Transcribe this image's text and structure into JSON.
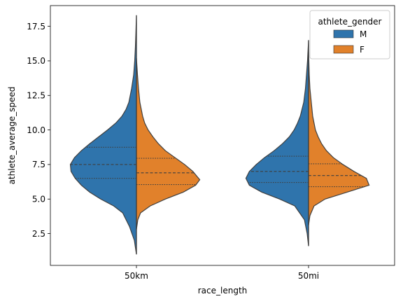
{
  "chart_data": {
    "type": "violin",
    "split": true,
    "xlabel": "race_length",
    "ylabel": "athlete_average_speed",
    "ylim": [
      0.2,
      19.0
    ],
    "yticks": [
      2.5,
      5.0,
      7.5,
      10.0,
      12.5,
      15.0,
      17.5
    ],
    "ytick_labels": [
      "2.5",
      "5.0",
      "7.5",
      "10.0",
      "12.5",
      "15.0",
      "17.5"
    ],
    "categories": [
      "50km",
      "50mi"
    ],
    "legend": {
      "title": "athlete_gender",
      "placement": "top-right",
      "entries": [
        "M",
        "F"
      ]
    },
    "series": [
      {
        "name": "M",
        "color": "#2f74ac",
        "violins": [
          {
            "category": "50km",
            "min": 1.0,
            "max": 18.3,
            "quartiles": [
              6.5,
              7.5,
              8.75
            ],
            "density": [
              [
                1.0,
                0.0
              ],
              [
                2.0,
                0.03
              ],
              [
                3.0,
                0.1
              ],
              [
                4.0,
                0.2
              ],
              [
                4.5,
                0.33
              ],
              [
                5.0,
                0.52
              ],
              [
                5.5,
                0.68
              ],
              [
                6.0,
                0.8
              ],
              [
                6.5,
                0.89
              ],
              [
                7.0,
                0.95
              ],
              [
                7.5,
                0.96
              ],
              [
                8.0,
                0.9
              ],
              [
                8.5,
                0.8
              ],
              [
                9.0,
                0.68
              ],
              [
                9.5,
                0.55
              ],
              [
                10.0,
                0.42
              ],
              [
                10.5,
                0.3
              ],
              [
                11.0,
                0.21
              ],
              [
                11.5,
                0.15
              ],
              [
                12.0,
                0.11
              ],
              [
                13.0,
                0.07
              ],
              [
                14.0,
                0.04
              ],
              [
                15.0,
                0.025
              ],
              [
                16.0,
                0.015
              ],
              [
                17.0,
                0.008
              ],
              [
                18.3,
                0.0
              ]
            ]
          },
          {
            "category": "50mi",
            "min": 1.6,
            "max": 16.5,
            "quartiles": [
              6.2,
              7.0,
              8.1
            ],
            "density": [
              [
                1.6,
                0.0
              ],
              [
                2.5,
                0.02
              ],
              [
                3.5,
                0.06
              ],
              [
                4.5,
                0.2
              ],
              [
                5.0,
                0.42
              ],
              [
                5.5,
                0.68
              ],
              [
                6.0,
                0.86
              ],
              [
                6.5,
                0.91
              ],
              [
                7.0,
                0.86
              ],
              [
                7.5,
                0.76
              ],
              [
                8.0,
                0.64
              ],
              [
                8.5,
                0.5
              ],
              [
                9.0,
                0.38
              ],
              [
                9.5,
                0.28
              ],
              [
                10.0,
                0.21
              ],
              [
                10.5,
                0.16
              ],
              [
                11.0,
                0.12
              ],
              [
                12.0,
                0.07
              ],
              [
                13.0,
                0.045
              ],
              [
                14.0,
                0.03
              ],
              [
                15.0,
                0.015
              ],
              [
                16.5,
                0.0
              ]
            ]
          }
        ]
      },
      {
        "name": "F",
        "color": "#e1812b",
        "violins": [
          {
            "category": "50km",
            "min": 2.8,
            "max": 15.2,
            "quartiles": [
              6.05,
              6.9,
              7.95
            ],
            "density": [
              [
                2.8,
                0.0
              ],
              [
                3.5,
                0.02
              ],
              [
                4.0,
                0.06
              ],
              [
                4.5,
                0.2
              ],
              [
                5.0,
                0.42
              ],
              [
                5.5,
                0.68
              ],
              [
                6.0,
                0.86
              ],
              [
                6.4,
                0.92
              ],
              [
                7.0,
                0.82
              ],
              [
                7.5,
                0.7
              ],
              [
                8.0,
                0.56
              ],
              [
                8.5,
                0.42
              ],
              [
                9.0,
                0.32
              ],
              [
                9.5,
                0.24
              ],
              [
                10.0,
                0.17
              ],
              [
                10.5,
                0.12
              ],
              [
                11.0,
                0.09
              ],
              [
                12.0,
                0.05
              ],
              [
                13.0,
                0.03
              ],
              [
                14.0,
                0.015
              ],
              [
                15.2,
                0.0
              ]
            ]
          },
          {
            "category": "50mi",
            "min": 3.1,
            "max": 15.8,
            "quartiles": [
              5.9,
              6.7,
              7.55
            ],
            "density": [
              [
                3.1,
                0.0
              ],
              [
                3.8,
                0.02
              ],
              [
                4.5,
                0.08
              ],
              [
                5.0,
                0.24
              ],
              [
                5.5,
                0.56
              ],
              [
                6.0,
                0.88
              ],
              [
                6.5,
                0.84
              ],
              [
                7.0,
                0.66
              ],
              [
                7.5,
                0.5
              ],
              [
                8.0,
                0.36
              ],
              [
                8.5,
                0.26
              ],
              [
                9.0,
                0.19
              ],
              [
                9.5,
                0.14
              ],
              [
                10.0,
                0.1
              ],
              [
                11.0,
                0.06
              ],
              [
                12.0,
                0.04
              ],
              [
                13.0,
                0.02
              ],
              [
                14.0,
                0.01
              ],
              [
                15.8,
                0.0
              ]
            ]
          }
        ]
      }
    ]
  }
}
